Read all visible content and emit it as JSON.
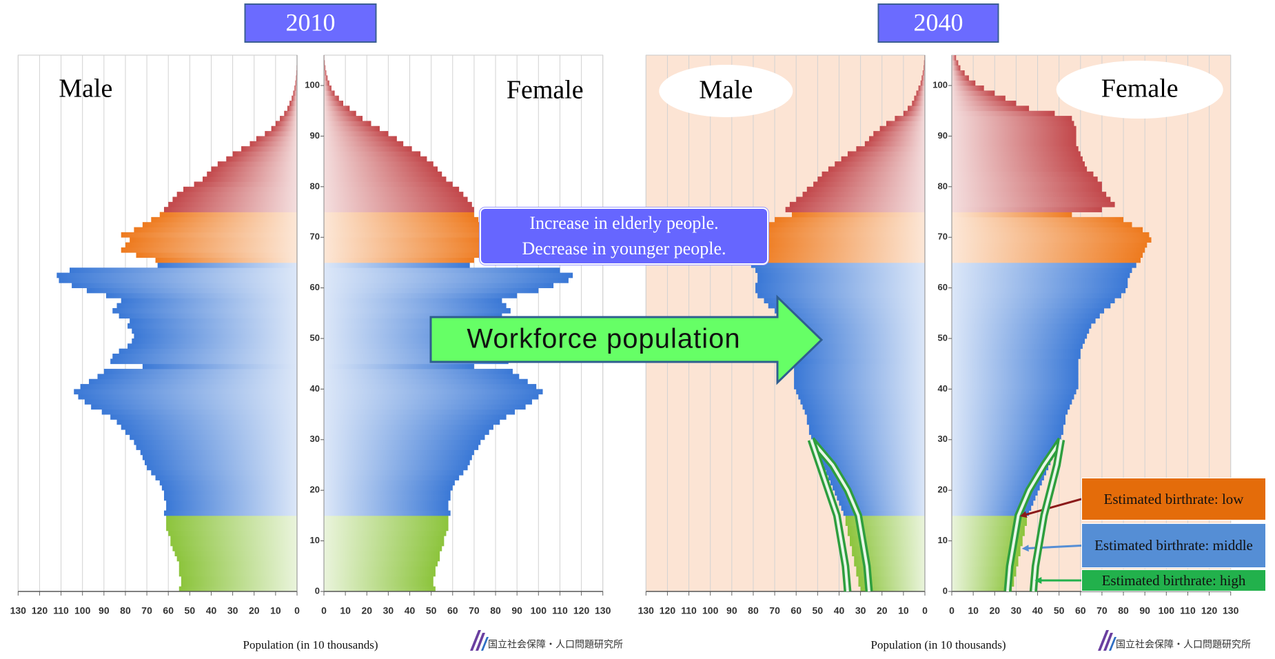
{
  "chart_data": [
    {
      "type": "pyramid",
      "title": "2010",
      "xlabel": "Population (in 10 thousands)",
      "logo": "国立社会保障・人口問題研究所",
      "ages": [
        0,
        1,
        2,
        3,
        4,
        5,
        6,
        7,
        8,
        9,
        10,
        11,
        12,
        13,
        14,
        15,
        16,
        17,
        18,
        19,
        20,
        21,
        22,
        23,
        24,
        25,
        26,
        27,
        28,
        29,
        30,
        31,
        32,
        33,
        34,
        35,
        36,
        37,
        38,
        39,
        40,
        41,
        42,
        43,
        44,
        45,
        46,
        47,
        48,
        49,
        50,
        51,
        52,
        53,
        54,
        55,
        56,
        57,
        58,
        59,
        60,
        61,
        62,
        63,
        64,
        65,
        66,
        67,
        68,
        69,
        70,
        71,
        72,
        73,
        74,
        75,
        76,
        77,
        78,
        79,
        80,
        81,
        82,
        83,
        84,
        85,
        86,
        87,
        88,
        89,
        90,
        91,
        92,
        93,
        94,
        95,
        96,
        97,
        98,
        99,
        100,
        101,
        102,
        103,
        104,
        105
      ],
      "series": [
        {
          "name": "Male",
          "values": [
            55,
            54,
            54,
            55,
            55,
            55,
            56,
            57,
            58,
            59,
            59,
            60,
            61,
            61,
            61,
            62,
            61,
            61,
            62,
            62,
            63,
            64,
            66,
            68,
            70,
            71,
            72,
            73,
            75,
            76,
            78,
            80,
            82,
            84,
            87,
            91,
            96,
            99,
            102,
            104,
            101,
            97,
            93,
            90,
            72,
            87,
            86,
            83,
            79,
            77,
            76,
            77,
            79,
            78,
            83,
            86,
            84,
            82,
            89,
            98,
            105,
            111,
            112,
            106,
            65,
            66,
            75,
            82,
            80,
            78,
            82,
            76,
            72,
            68,
            64,
            62,
            60,
            58,
            56,
            53,
            48,
            44,
            42,
            40,
            37,
            33,
            30,
            26,
            22,
            19,
            15,
            12,
            10,
            8,
            6,
            4.5,
            3.5,
            2.5,
            1.8,
            1.2,
            0.8,
            0.5,
            0.3,
            0.2,
            0.1,
            0.05
          ]
        },
        {
          "name": "Female",
          "values": [
            52,
            51,
            51,
            52,
            52,
            53,
            54,
            54,
            55,
            56,
            56,
            57,
            58,
            58,
            58,
            59,
            58,
            58,
            59,
            59,
            60,
            61,
            63,
            65,
            67,
            68,
            69,
            70,
            72,
            73,
            75,
            77,
            79,
            82,
            85,
            89,
            94,
            97,
            100,
            102,
            99,
            95,
            91,
            88,
            70,
            86,
            84,
            82,
            79,
            77,
            76,
            77,
            79,
            78,
            83,
            87,
            85,
            83,
            90,
            100,
            107,
            114,
            116,
            110,
            68,
            70,
            76,
            78,
            77,
            75,
            80,
            77,
            75,
            72,
            70,
            70,
            69,
            67,
            65,
            63,
            60,
            57,
            55,
            53,
            51,
            48,
            45,
            41,
            37,
            34,
            30,
            26,
            22,
            18,
            15,
            12,
            9,
            7,
            5,
            3.5,
            2.5,
            1.7,
            1.1,
            0.7,
            0.4,
            0.2
          ]
        }
      ],
      "age_group_starts": [
        0,
        15,
        65,
        75
      ],
      "age_group_colors": [
        "#8cc43c",
        "#3a78d6",
        "#ee7a1e",
        "#c2474a"
      ],
      "xlim": [
        0,
        130
      ],
      "xticks": [
        0,
        10,
        20,
        30,
        40,
        50,
        60,
        70,
        80,
        90,
        100,
        110,
        120,
        130
      ],
      "ylim": [
        0,
        106
      ],
      "yticks": [
        0,
        10,
        20,
        30,
        40,
        50,
        60,
        70,
        80,
        90,
        100
      ],
      "grid": true,
      "background": "#ffffff"
    },
    {
      "type": "pyramid",
      "title": "2040",
      "xlabel": "Population (in 10 thousands)",
      "logo": "国立社会保障・人口問題研究所",
      "ages": [
        0,
        1,
        2,
        3,
        4,
        5,
        6,
        7,
        8,
        9,
        10,
        11,
        12,
        13,
        14,
        15,
        16,
        17,
        18,
        19,
        20,
        21,
        22,
        23,
        24,
        25,
        26,
        27,
        28,
        29,
        30,
        31,
        32,
        33,
        34,
        35,
        36,
        37,
        38,
        39,
        40,
        41,
        42,
        43,
        44,
        45,
        46,
        47,
        48,
        49,
        50,
        51,
        52,
        53,
        54,
        55,
        56,
        57,
        58,
        59,
        60,
        61,
        62,
        63,
        64,
        65,
        66,
        67,
        68,
        69,
        70,
        71,
        72,
        73,
        74,
        75,
        76,
        77,
        78,
        79,
        80,
        81,
        82,
        83,
        84,
        85,
        86,
        87,
        88,
        89,
        90,
        91,
        92,
        93,
        94,
        95,
        96,
        97,
        98,
        99,
        100,
        101,
        102,
        103,
        104,
        105
      ],
      "series": [
        {
          "name": "Male",
          "values": [
            30,
            31,
            31,
            32,
            32,
            33,
            33,
            34,
            34,
            35,
            35,
            36,
            36,
            37,
            37,
            38,
            39,
            40,
            41,
            42,
            43,
            44,
            45,
            46,
            47,
            48,
            49,
            50,
            51,
            52,
            53,
            54,
            54,
            55,
            55,
            56,
            57,
            58,
            59,
            60,
            61,
            61,
            61,
            61,
            61,
            60,
            61,
            61,
            61,
            62,
            62,
            63,
            64,
            66,
            68,
            70,
            73,
            75,
            78,
            79,
            79,
            78,
            78,
            79,
            81,
            80,
            79,
            78,
            77,
            77,
            78,
            76,
            73,
            70,
            62,
            65,
            63,
            60,
            57,
            55,
            52,
            50,
            48,
            45,
            42,
            39,
            36,
            32,
            28,
            26,
            24,
            21,
            18,
            14,
            10,
            8,
            6,
            5,
            4,
            3,
            2,
            1.5,
            1,
            0.6,
            0.4,
            0.2
          ]
        },
        {
          "name": "Female",
          "values": [
            28,
            29,
            29,
            30,
            30,
            31,
            31,
            32,
            32,
            33,
            33,
            34,
            34,
            35,
            35,
            36,
            37,
            38,
            39,
            40,
            41,
            42,
            43,
            44,
            45,
            46,
            47,
            48,
            49,
            50,
            51,
            52,
            52,
            53,
            53,
            54,
            55,
            56,
            57,
            58,
            59,
            59,
            59,
            59,
            59,
            59,
            60,
            60,
            61,
            62,
            63,
            64,
            65,
            67,
            69,
            71,
            74,
            76,
            79,
            81,
            82,
            82,
            83,
            84,
            86,
            88,
            89,
            90,
            91,
            93,
            92,
            89,
            84,
            80,
            56,
            70,
            76,
            74,
            72,
            70,
            70,
            68,
            66,
            63,
            62,
            61,
            60,
            59,
            58,
            58,
            58,
            58,
            57,
            56,
            48,
            36,
            30,
            25,
            20,
            15,
            11,
            8,
            6,
            4,
            3,
            2
          ]
        }
      ],
      "age_group_starts": [
        0,
        15,
        65,
        75
      ],
      "age_group_colors": [
        "#8cc43c",
        "#3a78d6",
        "#ee7a1e",
        "#c2474a"
      ],
      "xlim": [
        0,
        130
      ],
      "xticks": [
        0,
        10,
        20,
        30,
        40,
        50,
        60,
        70,
        80,
        90,
        100,
        110,
        120,
        130
      ],
      "ylim": [
        0,
        106
      ],
      "yticks": [
        0,
        10,
        20,
        30,
        40,
        50,
        60,
        70,
        80,
        90,
        100
      ],
      "grid": true,
      "background": "#fce4d4",
      "line_color": "#2e9e3e",
      "birthrate_variants": [
        {
          "name": "Estimated birthrate: low",
          "color": "#e46c0a",
          "ages": [
            0,
            5,
            10,
            15,
            20,
            25,
            30
          ],
          "male": [
            26,
            27,
            29,
            31,
            36,
            43,
            53
          ],
          "female": [
            26,
            27,
            29,
            31,
            36,
            43,
            51
          ]
        },
        {
          "name": "Estimated birthrate: middle",
          "color": "#558ed5"
        },
        {
          "name": "Estimated birthrate: high",
          "color": "#22b14c",
          "ages": [
            0,
            5,
            10,
            15,
            20,
            25,
            30
          ],
          "male": [
            36,
            37,
            39,
            41,
            45,
            49,
            53
          ],
          "female": [
            38,
            39,
            41,
            43,
            46,
            49,
            51
          ]
        }
      ]
    }
  ],
  "annotations": {
    "elderly": [
      "Increase in elderly people.",
      "Decrease in younger people."
    ],
    "workforce": "Workforce population"
  }
}
